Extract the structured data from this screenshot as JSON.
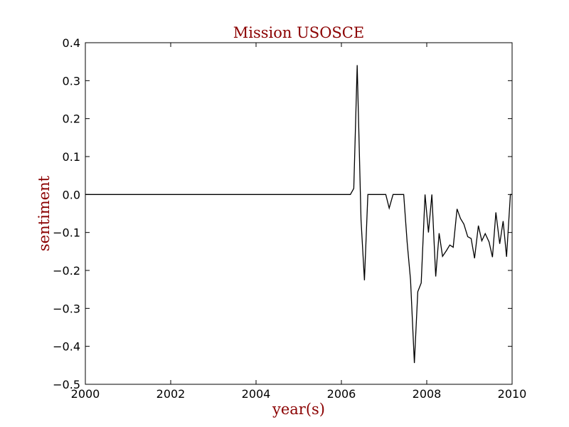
{
  "chart_data": {
    "type": "line",
    "title": "Mission USOSCE",
    "xlabel": "year(s)",
    "ylabel": "sentiment",
    "xlim": [
      2000,
      2010
    ],
    "ylim": [
      -0.5,
      0.4
    ],
    "x_ticks": [
      2000,
      2002,
      2004,
      2006,
      2008,
      2010
    ],
    "x_tick_labels": [
      "2000",
      "2002",
      "2004",
      "2006",
      "2008",
      "2010"
    ],
    "y_ticks": [
      0.4,
      0.3,
      0.2,
      0.1,
      0.0,
      -0.1,
      -0.2,
      -0.3,
      -0.4,
      -0.5
    ],
    "y_tick_labels": [
      "0.4",
      "0.3",
      "0.2",
      "0.1",
      "0.0",
      "−0.1",
      "−0.2",
      "−0.3",
      "−0.4",
      "−0.5"
    ],
    "grid": false,
    "colors": {
      "line": "#000000",
      "title": "#8b0000",
      "labels": "#8b0000",
      "axes": "#000000"
    },
    "series": [
      {
        "x": [
          2000.0,
          2006.21,
          2006.29,
          2006.37,
          2006.46,
          2006.54,
          2006.62,
          2006.71,
          2006.79,
          2006.87,
          2006.96,
          2007.04,
          2007.12,
          2007.21,
          2007.29,
          2007.37,
          2007.46,
          2007.54,
          2007.62,
          2007.71,
          2007.79,
          2007.87,
          2007.96,
          2008.04,
          2008.12,
          2008.21,
          2008.29,
          2008.37,
          2008.46,
          2008.54,
          2008.62,
          2008.71,
          2008.79,
          2008.87,
          2008.96,
          2009.04,
          2009.12,
          2009.21,
          2009.29,
          2009.37,
          2009.46,
          2009.54,
          2009.62,
          2009.71,
          2009.79,
          2009.87,
          2009.96,
          2010.0
        ],
        "y": [
          0.0,
          0.0,
          0.016,
          0.341,
          -0.067,
          -0.226,
          0.0,
          0.0,
          0.0,
          0.0,
          0.0,
          0.0,
          -0.036,
          0.0,
          0.0,
          0.0,
          0.0,
          -0.125,
          -0.225,
          -0.444,
          -0.256,
          -0.233,
          0.0,
          -0.1,
          0.0,
          -0.216,
          -0.102,
          -0.163,
          -0.148,
          -0.133,
          -0.139,
          -0.038,
          -0.063,
          -0.078,
          -0.111,
          -0.116,
          -0.168,
          -0.082,
          -0.122,
          -0.103,
          -0.125,
          -0.165,
          -0.047,
          -0.13,
          -0.07,
          -0.164,
          0.0,
          0.0
        ]
      }
    ]
  }
}
